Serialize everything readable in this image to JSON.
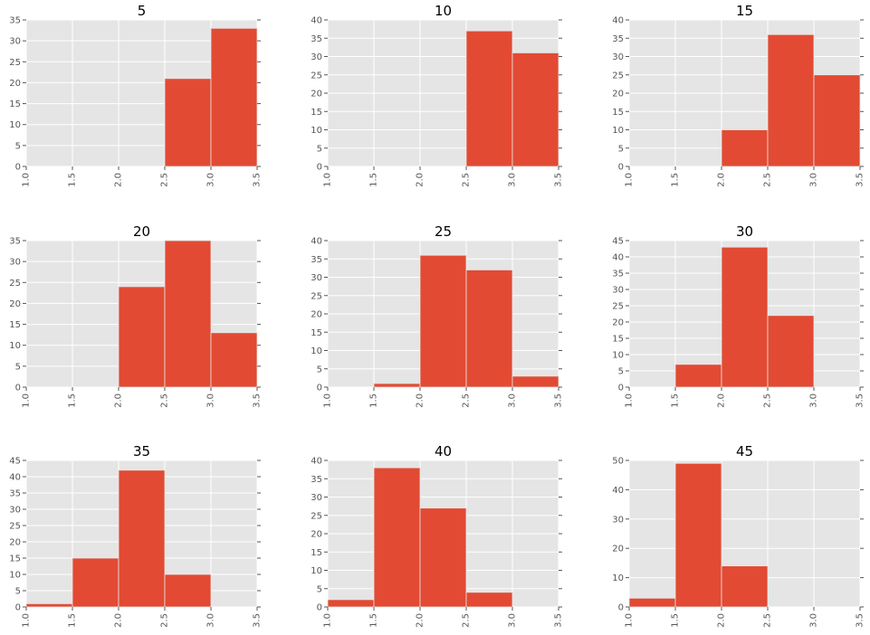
{
  "style": {
    "bar_color": "#E24A33",
    "plot_background": "#E5E5E5",
    "grid_color": "#FFFFFF",
    "tick_color": "#555555"
  },
  "chart_data": [
    {
      "type": "bar",
      "title": "5",
      "bins": [
        [
          1.0,
          1.5
        ],
        [
          1.5,
          2.0
        ],
        [
          2.0,
          2.5
        ],
        [
          2.5,
          3.0
        ],
        [
          3.0,
          3.5
        ]
      ],
      "values": [
        0,
        0,
        0,
        21,
        33
      ],
      "xlim": [
        1.0,
        3.5
      ],
      "ylim": [
        0,
        35
      ],
      "xticks": [
        "1.0",
        "1.5",
        "2.0",
        "2.5",
        "3.0",
        "3.5"
      ],
      "yticks": [
        "0",
        "5",
        "10",
        "15",
        "20",
        "25",
        "30",
        "35"
      ],
      "grid": true
    },
    {
      "type": "bar",
      "title": "10",
      "bins": [
        [
          1.0,
          1.5
        ],
        [
          1.5,
          2.0
        ],
        [
          2.0,
          2.5
        ],
        [
          2.5,
          3.0
        ],
        [
          3.0,
          3.5
        ]
      ],
      "values": [
        0,
        0,
        0,
        37,
        31
      ],
      "xlim": [
        1.0,
        3.5
      ],
      "ylim": [
        0,
        40
      ],
      "xticks": [
        "1.0",
        "1.5",
        "2.0",
        "2.5",
        "3.0",
        "3.5"
      ],
      "yticks": [
        "0",
        "5",
        "10",
        "15",
        "20",
        "25",
        "30",
        "35",
        "40"
      ],
      "grid": true
    },
    {
      "type": "bar",
      "title": "15",
      "bins": [
        [
          1.0,
          1.5
        ],
        [
          1.5,
          2.0
        ],
        [
          2.0,
          2.5
        ],
        [
          2.5,
          3.0
        ],
        [
          3.0,
          3.5
        ]
      ],
      "values": [
        0,
        0,
        10,
        36,
        25
      ],
      "xlim": [
        1.0,
        3.5
      ],
      "ylim": [
        0,
        40
      ],
      "xticks": [
        "1.0",
        "1.5",
        "2.0",
        "2.5",
        "3.0",
        "3.5"
      ],
      "yticks": [
        "0",
        "5",
        "10",
        "15",
        "20",
        "25",
        "30",
        "35",
        "40"
      ],
      "grid": true
    },
    {
      "type": "bar",
      "title": "20",
      "bins": [
        [
          1.0,
          1.5
        ],
        [
          1.5,
          2.0
        ],
        [
          2.0,
          2.5
        ],
        [
          2.5,
          3.0
        ],
        [
          3.0,
          3.5
        ]
      ],
      "values": [
        0,
        0,
        24,
        35,
        13
      ],
      "xlim": [
        1.0,
        3.5
      ],
      "ylim": [
        0,
        35
      ],
      "xticks": [
        "1.0",
        "1.5",
        "2.0",
        "2.5",
        "3.0",
        "3.5"
      ],
      "yticks": [
        "0",
        "5",
        "10",
        "15",
        "20",
        "25",
        "30",
        "35"
      ],
      "grid": true
    },
    {
      "type": "bar",
      "title": "25",
      "bins": [
        [
          1.0,
          1.5
        ],
        [
          1.5,
          2.0
        ],
        [
          2.0,
          2.5
        ],
        [
          2.5,
          3.0
        ],
        [
          3.0,
          3.5
        ]
      ],
      "values": [
        0,
        1,
        36,
        32,
        3
      ],
      "xlim": [
        1.0,
        3.5
      ],
      "ylim": [
        0,
        40
      ],
      "xticks": [
        "1.0",
        "1.5",
        "2.0",
        "2.5",
        "3.0",
        "3.5"
      ],
      "yticks": [
        "0",
        "5",
        "10",
        "15",
        "20",
        "25",
        "30",
        "35",
        "40"
      ],
      "grid": true
    },
    {
      "type": "bar",
      "title": "30",
      "bins": [
        [
          1.0,
          1.5
        ],
        [
          1.5,
          2.0
        ],
        [
          2.0,
          2.5
        ],
        [
          2.5,
          3.0
        ],
        [
          3.0,
          3.5
        ]
      ],
      "values": [
        0,
        7,
        43,
        22,
        0
      ],
      "xlim": [
        1.0,
        3.5
      ],
      "ylim": [
        0,
        45
      ],
      "xticks": [
        "1.0",
        "1.5",
        "2.0",
        "2.5",
        "3.0",
        "3.5"
      ],
      "yticks": [
        "0",
        "5",
        "10",
        "15",
        "20",
        "25",
        "30",
        "35",
        "40",
        "45"
      ],
      "grid": true
    },
    {
      "type": "bar",
      "title": "35",
      "bins": [
        [
          1.0,
          1.5
        ],
        [
          1.5,
          2.0
        ],
        [
          2.0,
          2.5
        ],
        [
          2.5,
          3.0
        ],
        [
          3.0,
          3.5
        ]
      ],
      "values": [
        1,
        15,
        42,
        10,
        0
      ],
      "xlim": [
        1.0,
        3.5
      ],
      "ylim": [
        0,
        45
      ],
      "xticks": [
        "1.0",
        "1.5",
        "2.0",
        "2.5",
        "3.0",
        "3.5"
      ],
      "yticks": [
        "0",
        "5",
        "10",
        "15",
        "20",
        "25",
        "30",
        "35",
        "40",
        "45"
      ],
      "grid": true
    },
    {
      "type": "bar",
      "title": "40",
      "bins": [
        [
          1.0,
          1.5
        ],
        [
          1.5,
          2.0
        ],
        [
          2.0,
          2.5
        ],
        [
          2.5,
          3.0
        ],
        [
          3.0,
          3.5
        ]
      ],
      "values": [
        2,
        38,
        27,
        4,
        0
      ],
      "xlim": [
        1.0,
        3.5
      ],
      "ylim": [
        0,
        40
      ],
      "xticks": [
        "1.0",
        "1.5",
        "2.0",
        "2.5",
        "3.0",
        "3.5"
      ],
      "yticks": [
        "0",
        "5",
        "10",
        "15",
        "20",
        "25",
        "30",
        "35",
        "40"
      ],
      "grid": true
    },
    {
      "type": "bar",
      "title": "45",
      "bins": [
        [
          1.0,
          1.5
        ],
        [
          1.5,
          2.0
        ],
        [
          2.0,
          2.5
        ],
        [
          2.5,
          3.0
        ],
        [
          3.0,
          3.5
        ]
      ],
      "values": [
        3,
        49,
        14,
        0,
        0
      ],
      "xlim": [
        1.0,
        3.5
      ],
      "ylim": [
        0,
        50
      ],
      "xticks": [
        "1.0",
        "1.5",
        "2.0",
        "2.5",
        "3.0",
        "3.5"
      ],
      "yticks": [
        "0",
        "10",
        "20",
        "30",
        "40",
        "50"
      ],
      "grid": true
    }
  ]
}
